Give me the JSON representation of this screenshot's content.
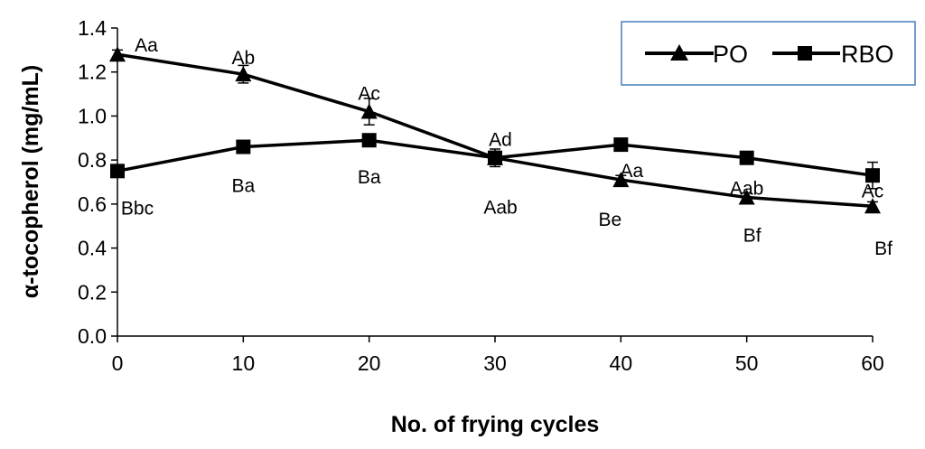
{
  "chart_data": {
    "type": "line",
    "title": "",
    "xlabel": "No. of frying cycles",
    "ylabel": "α-tocopherol (mg/mL)",
    "x": [
      0,
      10,
      20,
      30,
      40,
      50,
      60
    ],
    "xlim": [
      0,
      60
    ],
    "ylim": [
      0.0,
      1.4
    ],
    "x_ticks": [
      "0",
      "10",
      "20",
      "30",
      "40",
      "50",
      "60"
    ],
    "y_ticks": [
      "0.0",
      "0.2",
      "0.4",
      "0.6",
      "0.8",
      "1.0",
      "1.2",
      "1.4"
    ],
    "grid": false,
    "legend_position": "top-right",
    "series": [
      {
        "name": "PO",
        "marker": "triangle",
        "values": [
          1.28,
          1.19,
          1.02,
          0.81,
          0.71,
          0.63,
          0.59
        ],
        "errors": [
          0.02,
          0.04,
          0.06,
          0.03,
          0.02,
          0.02,
          0.02
        ],
        "labels": [
          "Aa",
          "Ab",
          "Ac",
          "Ad",
          "Aa",
          "Aab",
          "Ac"
        ]
      },
      {
        "name": "RBO",
        "marker": "square",
        "values": [
          0.75,
          0.86,
          0.89,
          0.81,
          0.87,
          0.81,
          0.73
        ],
        "errors": [
          0.01,
          0.02,
          0.02,
          0.04,
          0.02,
          0.02,
          0.06
        ],
        "labels": [
          "Bbc",
          "Ba",
          "Ba",
          "Aab",
          "Be",
          "Bf",
          "Bf"
        ]
      }
    ]
  }
}
